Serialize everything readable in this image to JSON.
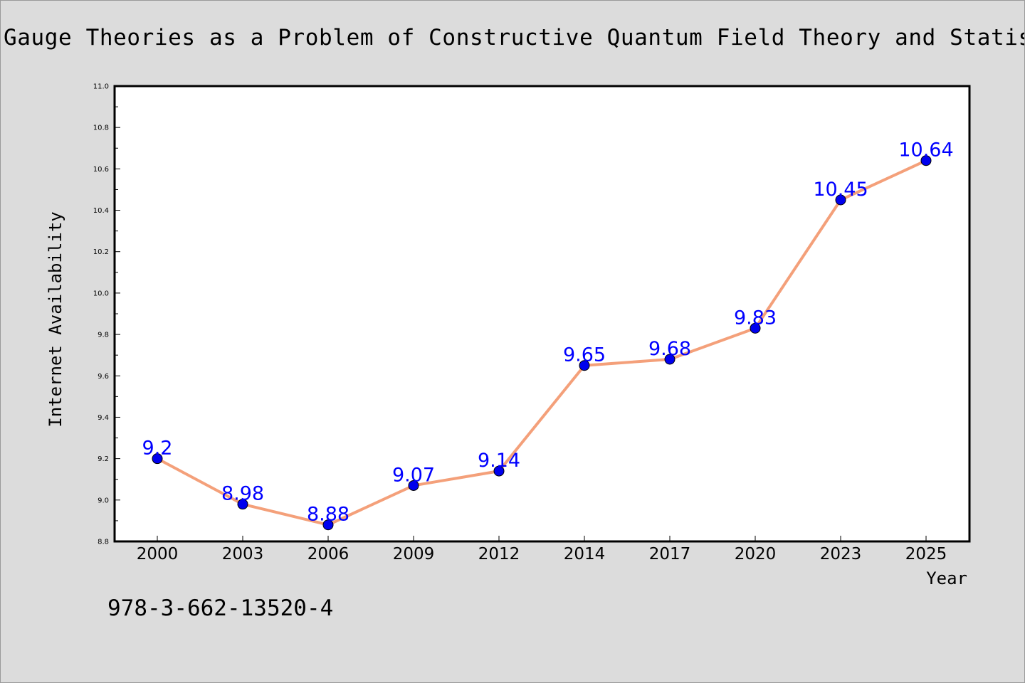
{
  "chart_data": {
    "type": "line",
    "title": "Gauge Theories as a Problem of Constructive Quantum Field Theory and Statistical",
    "xlabel": "Year",
    "ylabel": "Internet Availability",
    "categories": [
      "2000",
      "2003",
      "2006",
      "2009",
      "2012",
      "2014",
      "2017",
      "2020",
      "2023",
      "2025"
    ],
    "series": [
      {
        "values": [
          9.2,
          8.98,
          8.88,
          9.07,
          9.14,
          9.65,
          9.68,
          9.83,
          10.45,
          10.64
        ],
        "data_labels": [
          "9.2",
          "8.98",
          "8.88",
          "9.07",
          "9.14",
          "9.65",
          "9.68",
          "9.83",
          "10.45",
          "10.64"
        ],
        "line_color": "#f4a07a",
        "marker_color": "#0000ee"
      }
    ],
    "ylim": [
      8.8,
      11.0
    ],
    "yticks": [
      "8.8",
      "9.0",
      "9.2",
      "9.4",
      "9.6",
      "9.8",
      "10.0",
      "10.2",
      "10.4",
      "10.6",
      "10.8",
      "11.0"
    ],
    "grid": false,
    "legend": "none",
    "label_color": "#0000ff"
  },
  "footer": {
    "isbn": "978-3-662-13520-4"
  }
}
